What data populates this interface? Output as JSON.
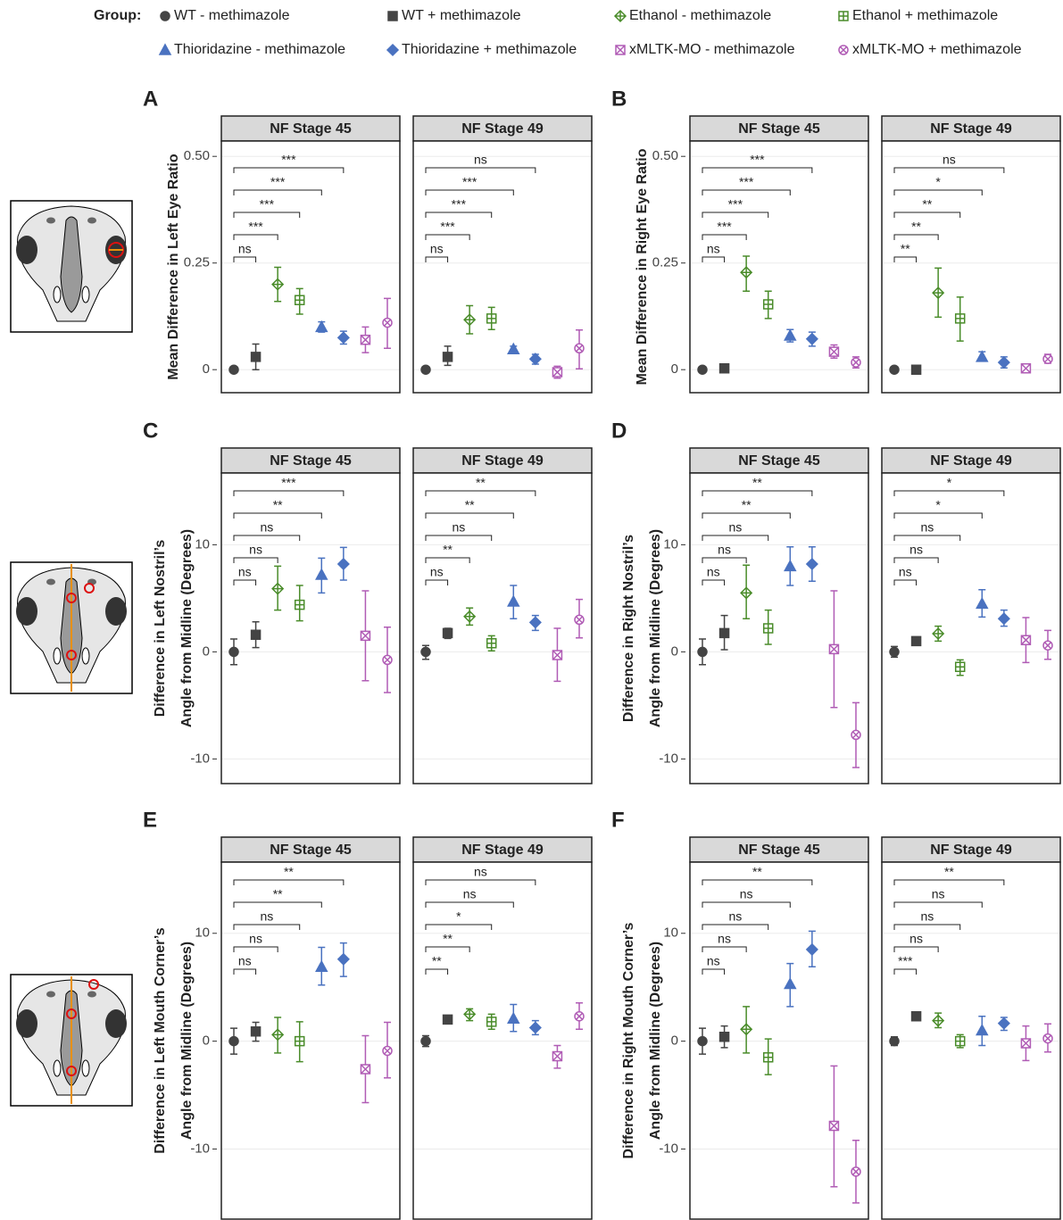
{
  "legend": {
    "title": "Group:",
    "groups": [
      {
        "name": "WT - methimazole",
        "color": "#444444",
        "marker": "circle"
      },
      {
        "name": "WT + methimazole",
        "color": "#444444",
        "marker": "square"
      },
      {
        "name": "Ethanol - methimazole",
        "color": "#4a8c2a",
        "marker": "diamond-plus"
      },
      {
        "name": "Ethanol + methimazole",
        "color": "#4a8c2a",
        "marker": "square-plus"
      },
      {
        "name": "Thioridazine - methimazole",
        "color": "#4a72c0",
        "marker": "triangle"
      },
      {
        "name": "Thioridazine + methimazole",
        "color": "#4a72c0",
        "marker": "diamond"
      },
      {
        "name": "xMLTK-MO - methimazole",
        "color": "#b05cb5",
        "marker": "square-x"
      },
      {
        "name": "xMLTK-MO + methimazole",
        "color": "#b05cb5",
        "marker": "circle-x"
      }
    ]
  },
  "chart_data": [
    {
      "type": "errorbar",
      "panel": "A",
      "ylabel": [
        "Mean Difference in Left Eye Ratio"
      ],
      "ylim": [
        -0.054,
        0.536
      ],
      "yticks": [
        0,
        0.25,
        {
          "value": 0.5,
          "label": "0.50"
        }
      ],
      "grid": true,
      "facets": [
        {
          "title": "NF Stage 45",
          "values": [
            0,
            0.03,
            0.2,
            0.163,
            0.1,
            0.075,
            0.07,
            0.11
          ],
          "low": [
            -0.003,
            0,
            0.16,
            0.13,
            0.088,
            0.06,
            0.04,
            0.05
          ],
          "high": [
            0.003,
            0.06,
            0.24,
            0.19,
            0.112,
            0.09,
            0.1,
            0.167
          ],
          "comparisons": [
            "ns",
            "***",
            "***",
            "***",
            "***"
          ]
        },
        {
          "title": "NF Stage 49",
          "values": [
            0,
            0.03,
            0.117,
            0.12,
            0.048,
            0.025,
            -0.006,
            0.05
          ],
          "low": [
            -0.003,
            0.01,
            0.084,
            0.094,
            0.04,
            0.013,
            -0.02,
            0.002
          ],
          "high": [
            0.003,
            0.055,
            0.15,
            0.146,
            0.055,
            0.036,
            0.008,
            0.093
          ],
          "comparisons": [
            "ns",
            "***",
            "***",
            "***",
            "ns"
          ]
        }
      ]
    },
    {
      "type": "errorbar",
      "panel": "B",
      "ylabel": [
        "Mean Difference in Right Eye Ratio"
      ],
      "ylim": [
        -0.054,
        0.536
      ],
      "yticks": [
        0,
        0.25,
        {
          "value": 0.5,
          "label": "0.50"
        }
      ],
      "grid": true,
      "facets": [
        {
          "title": "NF Stage 45",
          "values": [
            0,
            0.003,
            0.228,
            0.153,
            0.08,
            0.072,
            0.042,
            0.017
          ],
          "low": [
            -0.003,
            -0.002,
            0.184,
            0.12,
            0.065,
            0.055,
            0.027,
            0.004
          ],
          "high": [
            0.003,
            0.008,
            0.266,
            0.184,
            0.094,
            0.088,
            0.058,
            0.03
          ],
          "comparisons": [
            "ns",
            "***",
            "***",
            "***",
            "***"
          ]
        },
        {
          "title": "NF Stage 49",
          "values": [
            0,
            0,
            0.18,
            0.12,
            0.03,
            0.017,
            0.003,
            0.025
          ],
          "low": [
            -0.003,
            -0.003,
            0.123,
            0.067,
            0.02,
            0.004,
            -0.003,
            0.015
          ],
          "high": [
            0.003,
            0.003,
            0.238,
            0.17,
            0.042,
            0.03,
            0.009,
            0.036
          ],
          "comparisons": [
            "**",
            "**",
            "**",
            "*",
            "ns"
          ]
        }
      ]
    },
    {
      "type": "errorbar",
      "panel": "C",
      "ylabel": [
        "Difference in Left Nostril’s",
        "Angle from Midline (Degrees)"
      ],
      "ylim": [
        -12.3,
        16.7
      ],
      "yticks": [
        -10,
        0,
        10
      ],
      "grid": true,
      "facets": [
        {
          "title": "NF Stage 45",
          "values": [
            0,
            1.6,
            5.9,
            4.4,
            7.2,
            8.2,
            1.5,
            -0.75
          ],
          "low": [
            -1.2,
            0.4,
            3.9,
            2.9,
            5.5,
            6.7,
            -2.7,
            -3.8
          ],
          "high": [
            1.2,
            2.8,
            8,
            6.2,
            8.75,
            9.75,
            5.7,
            2.3
          ],
          "comparisons": [
            "ns",
            "ns",
            "ns",
            "**",
            "***"
          ]
        },
        {
          "title": "NF Stage 49",
          "values": [
            0,
            1.75,
            3.3,
            0.8,
            4.7,
            2.75,
            -0.3,
            3
          ],
          "low": [
            -0.7,
            1.25,
            2.5,
            0.1,
            3.1,
            2,
            -2.75,
            1.3
          ],
          "high": [
            0.6,
            2.2,
            4.1,
            1.5,
            6.2,
            3.4,
            2.2,
            4.9
          ],
          "comparisons": [
            "ns",
            "**",
            "ns",
            "**",
            "**"
          ]
        }
      ]
    },
    {
      "type": "errorbar",
      "panel": "D",
      "ylabel": [
        "Difference in Right Nostril’s",
        "Angle from Midline (Degrees)"
      ],
      "ylim": [
        -12.3,
        16.7
      ],
      "yticks": [
        -10,
        0,
        10
      ],
      "grid": true,
      "facets": [
        {
          "title": "NF Stage 45",
          "values": [
            0,
            1.75,
            5.5,
            2.2,
            8,
            8.2,
            0.25,
            -7.75
          ],
          "low": [
            -1.2,
            0.2,
            3.1,
            0.7,
            6.2,
            6.6,
            -5.2,
            -10.8
          ],
          "high": [
            1.2,
            3.4,
            8.1,
            3.9,
            9.8,
            9.8,
            5.7,
            -4.75
          ],
          "comparisons": [
            "ns",
            "ns",
            "ns",
            "**",
            "**"
          ]
        },
        {
          "title": "NF Stage 49",
          "values": [
            0,
            1,
            1.7,
            -1.4,
            4.5,
            3.1,
            1.1,
            0.6
          ],
          "low": [
            -0.5,
            0.6,
            1,
            -2.2,
            3.25,
            2.4,
            -1,
            -0.7
          ],
          "high": [
            0.5,
            1.4,
            2.4,
            -0.75,
            5.8,
            3.9,
            3.2,
            2
          ],
          "comparisons": [
            "ns",
            "ns",
            "ns",
            "*",
            "*"
          ]
        }
      ]
    },
    {
      "type": "errorbar",
      "panel": "E",
      "ylabel": [
        "Difference in Left Mouth Corner’s",
        "Angle from Midline (Degrees)"
      ],
      "ylim": [
        -16.5,
        16.6
      ],
      "yticks": [
        -10,
        0,
        10
      ],
      "grid": true,
      "facets": [
        {
          "title": "NF Stage 45",
          "values": [
            0,
            0.9,
            0.6,
            0,
            6.9,
            7.6,
            -2.6,
            -0.9
          ],
          "low": [
            -1.2,
            0,
            -1.1,
            -1.9,
            5.2,
            6,
            -5.7,
            -3.4
          ],
          "high": [
            1.2,
            1.75,
            2.2,
            1.8,
            8.7,
            9.1,
            0.5,
            1.75
          ],
          "comparisons": [
            "ns",
            "ns",
            "ns",
            "**",
            "**"
          ]
        },
        {
          "title": "NF Stage 49",
          "values": [
            0,
            2,
            2.5,
            1.8,
            2.1,
            1.25,
            -1.4,
            2.3
          ],
          "low": [
            -0.5,
            1.75,
            1.9,
            1.1,
            0.9,
            0.6,
            -2.5,
            1.1
          ],
          "high": [
            0.5,
            2.2,
            3,
            2.5,
            3.4,
            1.9,
            -0.4,
            3.55
          ],
          "comparisons": [
            "**",
            "**",
            "*",
            "ns",
            "ns"
          ]
        }
      ]
    },
    {
      "type": "errorbar",
      "panel": "F",
      "ylabel": [
        "Difference in Right Mouth Corner’s",
        "Angle from Midline (Degrees)"
      ],
      "ylim": [
        -16.5,
        16.6
      ],
      "yticks": [
        -10,
        0,
        10
      ],
      "grid": true,
      "facets": [
        {
          "title": "NF Stage 45",
          "values": [
            0,
            0.4,
            1.1,
            -1.5,
            5.3,
            8.5,
            -7.85,
            -12.1
          ],
          "low": [
            -1.2,
            -0.6,
            -1.1,
            -3.1,
            3.2,
            6.9,
            -13.5,
            -15
          ],
          "high": [
            1.2,
            1.4,
            3.2,
            0.2,
            7.2,
            10.2,
            -2.3,
            -9.2
          ],
          "comparisons": [
            "ns",
            "ns",
            "ns",
            "ns",
            "**"
          ]
        },
        {
          "title": "NF Stage 49",
          "values": [
            0,
            2.3,
            1.9,
            0,
            1,
            1.65,
            -0.2,
            0.25
          ],
          "low": [
            -0.4,
            1.9,
            1.25,
            -0.6,
            -0.4,
            1,
            -1.8,
            -1
          ],
          "high": [
            0.4,
            2.7,
            2.6,
            0.6,
            2.3,
            2.2,
            1.4,
            1.6
          ],
          "comparisons": [
            "***",
            "ns",
            "ns",
            "ns",
            "**"
          ]
        }
      ]
    }
  ]
}
